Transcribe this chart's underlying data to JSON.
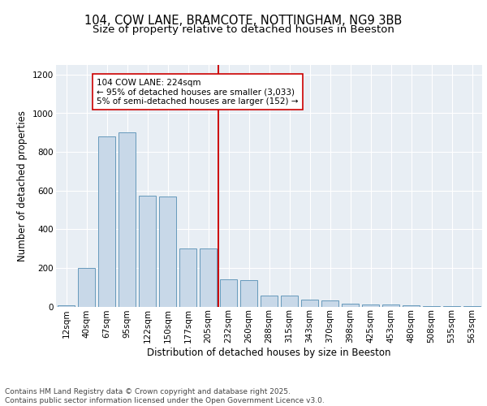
{
  "title1": "104, COW LANE, BRAMCOTE, NOTTINGHAM, NG9 3BB",
  "title2": "Size of property relative to detached houses in Beeston",
  "xlabel": "Distribution of detached houses by size in Beeston",
  "ylabel": "Number of detached properties",
  "categories": [
    "12sqm",
    "40sqm",
    "67sqm",
    "95sqm",
    "122sqm",
    "150sqm",
    "177sqm",
    "205sqm",
    "232sqm",
    "260sqm",
    "288sqm",
    "315sqm",
    "343sqm",
    "370sqm",
    "398sqm",
    "425sqm",
    "453sqm",
    "480sqm",
    "508sqm",
    "535sqm",
    "563sqm"
  ],
  "values": [
    5,
    200,
    880,
    900,
    575,
    570,
    300,
    300,
    140,
    135,
    55,
    55,
    35,
    30,
    15,
    12,
    12,
    8,
    2,
    1,
    1
  ],
  "bar_color": "#c8d8e8",
  "bar_edge_color": "#6699bb",
  "vline_index": 8,
  "vline_color": "#cc0000",
  "annotation_line1": "104 COW LANE: 224sqm",
  "annotation_line2": "← 95% of detached houses are smaller (3,033)",
  "annotation_line3": "5% of semi-detached houses are larger (152) →",
  "ylim": [
    0,
    1250
  ],
  "yticks": [
    0,
    200,
    400,
    600,
    800,
    1000,
    1200
  ],
  "background_color": "#e8eef4",
  "grid_color": "#ffffff",
  "footer_line1": "Contains HM Land Registry data © Crown copyright and database right 2025.",
  "footer_line2": "Contains public sector information licensed under the Open Government Licence v3.0.",
  "title_fontsize": 10.5,
  "subtitle_fontsize": 9.5,
  "axis_label_fontsize": 8.5,
  "tick_fontsize": 7.5,
  "annotation_fontsize": 7.5,
  "footer_fontsize": 6.5
}
